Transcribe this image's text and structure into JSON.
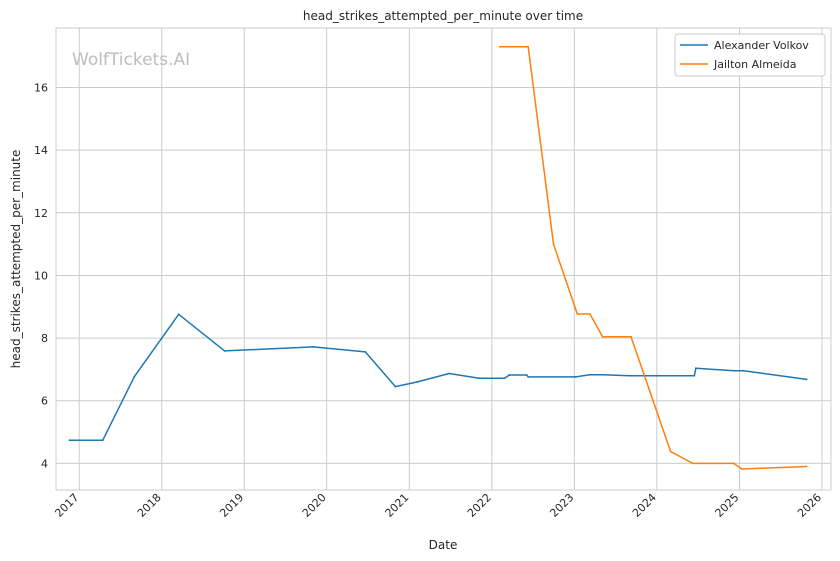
{
  "chart_data": {
    "type": "line",
    "title": "head_strikes_attempted_per_minute over time",
    "xlabel": "Date",
    "ylabel": "head_strikes_attempted_per_minute",
    "watermark": "WolfTickets.AI",
    "xlim": [
      "2016-09-20",
      "2026-02-10"
    ],
    "ylim": [
      3.15,
      17.9
    ],
    "x_ticks": [
      "2017",
      "2018",
      "2019",
      "2020",
      "2021",
      "2022",
      "2023",
      "2024",
      "2025",
      "2026"
    ],
    "y_ticks": [
      4,
      6,
      8,
      10,
      12,
      14,
      16
    ],
    "grid": true,
    "legend_position": "top-right",
    "series": [
      {
        "name": "Alexander Volkov",
        "color": "#1f77b4",
        "points": [
          [
            "2016-11-19",
            4.74
          ],
          [
            "2017-04-15",
            4.74
          ],
          [
            "2017-09-02",
            6.77
          ],
          [
            "2018-03-17",
            8.76
          ],
          [
            "2018-10-06",
            7.59
          ],
          [
            "2019-11-02",
            7.72
          ],
          [
            "2020-06-20",
            7.56
          ],
          [
            "2020-10-31",
            6.45
          ],
          [
            "2021-02-06",
            6.6
          ],
          [
            "2021-06-26",
            6.87
          ],
          [
            "2021-11-06",
            6.72
          ],
          [
            "2022-02-26",
            6.72
          ],
          [
            "2022-03-19",
            6.82
          ],
          [
            "2022-06-04",
            6.82
          ],
          [
            "2022-06-11",
            6.76
          ],
          [
            "2023-01-07",
            6.76
          ],
          [
            "2023-03-11",
            6.83
          ],
          [
            "2023-05-06",
            6.83
          ],
          [
            "2023-09-02",
            6.8
          ],
          [
            "2024-01-06",
            6.8
          ],
          [
            "2024-06-15",
            6.8
          ],
          [
            "2024-06-22",
            7.04
          ],
          [
            "2024-12-07",
            6.96
          ],
          [
            "2025-01-18",
            6.96
          ],
          [
            "2025-10-25",
            6.68
          ]
        ]
      },
      {
        "name": "Jailton Almeida",
        "color": "#ff7f0e",
        "points": [
          [
            "2022-02-05",
            17.3
          ],
          [
            "2022-06-11",
            17.3
          ],
          [
            "2022-10-01",
            11.0
          ],
          [
            "2023-01-14",
            8.77
          ],
          [
            "2023-03-11",
            8.77
          ],
          [
            "2023-05-06",
            8.04
          ],
          [
            "2023-09-09",
            8.04
          ],
          [
            "2024-03-02",
            4.38
          ],
          [
            "2024-06-08",
            4.0
          ],
          [
            "2024-12-07",
            4.0
          ],
          [
            "2025-01-11",
            3.82
          ],
          [
            "2025-10-25",
            3.9
          ]
        ]
      }
    ]
  }
}
